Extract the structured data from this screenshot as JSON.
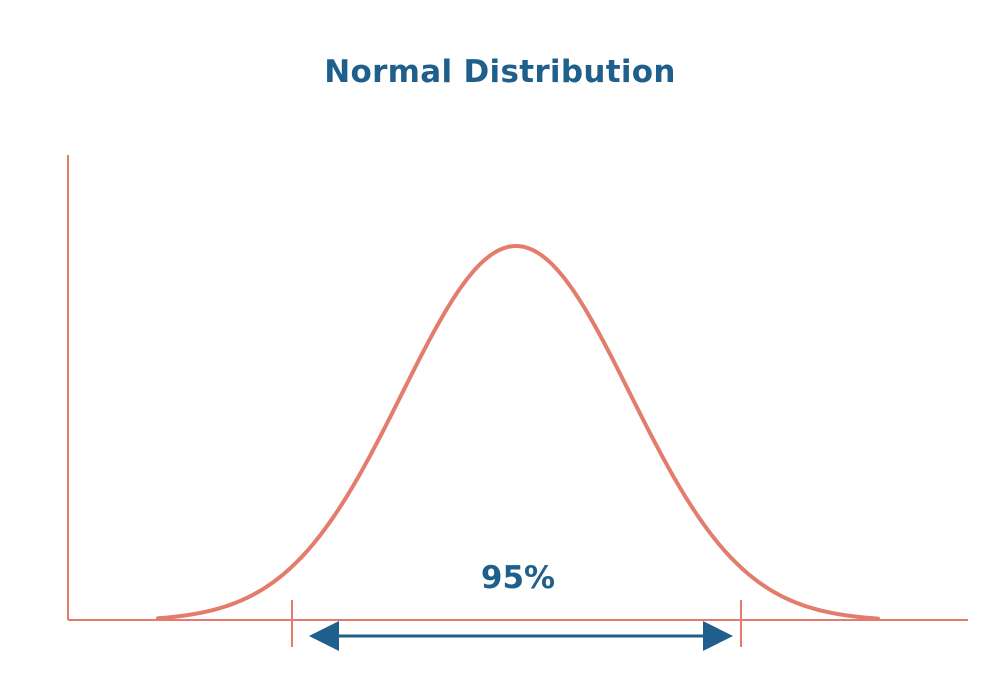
{
  "title": "Normal Distribution",
  "interval_label": "95%",
  "colors": {
    "curve": "#e47c6e",
    "axis": "#e47c6e",
    "accent": "#1f5f8b"
  }
}
